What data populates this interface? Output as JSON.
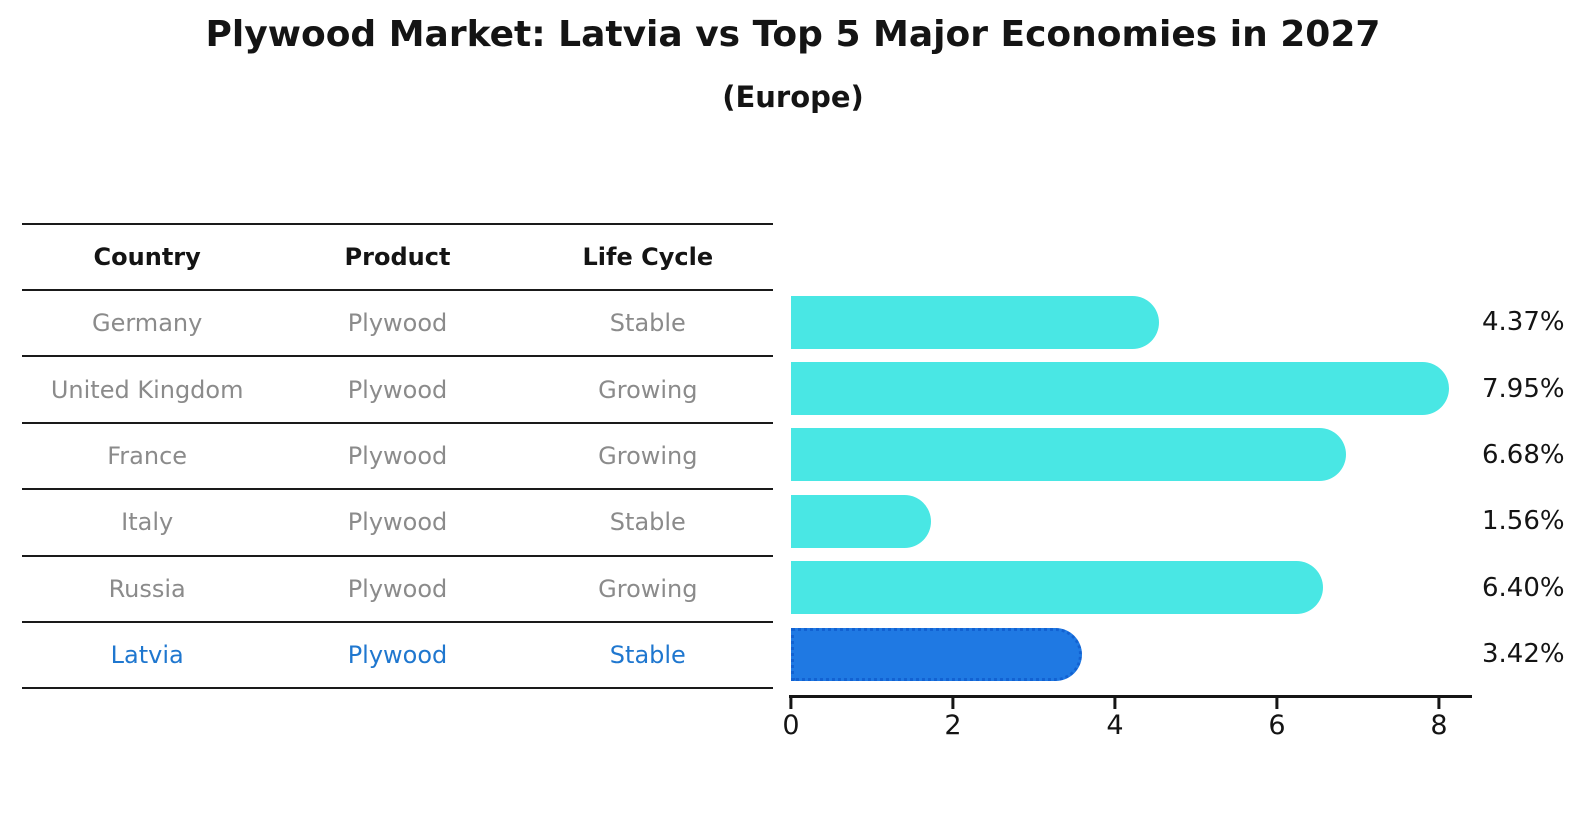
{
  "title": "Plywood Market: Latvia vs Top 5 Major Economies in 2027",
  "subtitle": "(Europe)",
  "table": {
    "headers": [
      "Country",
      "Product",
      "Life Cycle"
    ],
    "rows": [
      {
        "country": "Germany",
        "product": "Plywood",
        "life_cycle": "Stable"
      },
      {
        "country": "United Kingdom",
        "product": "Plywood",
        "life_cycle": "Growing"
      },
      {
        "country": "France",
        "product": "Plywood",
        "life_cycle": "Growing"
      },
      {
        "country": "Italy",
        "product": "Plywood",
        "life_cycle": "Stable"
      },
      {
        "country": "Russia",
        "product": "Plywood",
        "life_cycle": "Growing"
      },
      {
        "country": "Latvia",
        "product": "Plywood",
        "life_cycle": "Stable"
      }
    ],
    "highlight_row": "Latvia"
  },
  "chart_data": {
    "type": "bar",
    "orientation": "horizontal",
    "title": "Plywood Market: Latvia vs Top 5 Major Economies in 2027",
    "subtitle": "(Europe)",
    "categories": [
      "Germany",
      "United Kingdom",
      "France",
      "Italy",
      "Russia",
      "Latvia"
    ],
    "values": [
      4.37,
      7.95,
      6.68,
      1.56,
      6.4,
      3.42
    ],
    "value_labels": [
      "4.37%",
      "7.95%",
      "6.68%",
      "1.56%",
      "6.40%",
      "3.42%"
    ],
    "x_ticks": [
      0,
      2,
      4,
      6,
      8
    ],
    "x_tick_labels": [
      "0",
      "2",
      "4",
      "6",
      "8"
    ],
    "xlim": [
      0,
      8.4
    ],
    "grid": false,
    "legend": false,
    "highlight_index": 5,
    "bar_color": "#49e7e4",
    "highlight_bar_color": "#1f79e3",
    "highlight_text_color": "#1f77cf"
  },
  "colors": {
    "background": "#ffffff",
    "axis": "#151515",
    "table_line": "#1a1a1a",
    "table_text": "#8b8b8b",
    "header_text": "#141414"
  }
}
